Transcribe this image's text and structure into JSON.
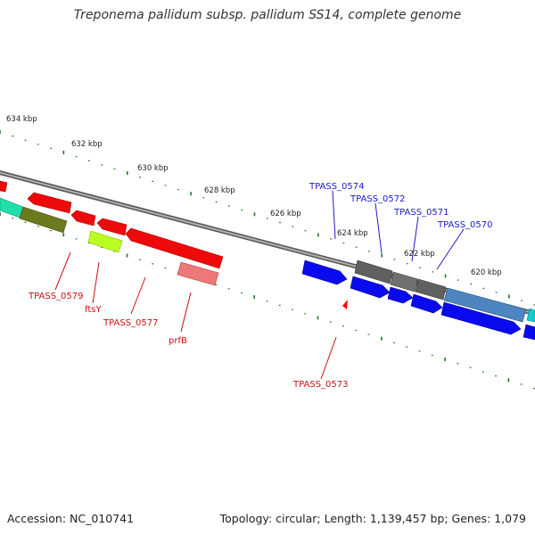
{
  "title": "Treponema pallidum subsp. pallidum SS14, complete genome",
  "footer": {
    "accession": "Accession: NC_010741",
    "topology": "Topology: circular; Length: 1,139,457 bp; Genes: 1,079"
  },
  "colors": {
    "forward_strand": "#0a0aee",
    "reverse_strand": "#ee0a0a",
    "backbone": "#7a7a7a",
    "ticks": "#1a7a1a",
    "label_red": "#cc1111",
    "label_blue": "#1a1acc"
  },
  "scale_labels": [
    "634 kbp",
    "632 kbp",
    "630 kbp",
    "628 kbp",
    "626 kbp",
    "624 kbp",
    "622 kbp",
    "620 kbp"
  ],
  "gene_labels": {
    "reverse": [
      "TPASS_0579",
      "ftsY",
      "TPASS_0577",
      "prfB",
      "TPASS_0573"
    ],
    "forward": [
      "TPASS_0574",
      "TPASS_0572",
      "TPASS_0571",
      "TPASS_0570"
    ]
  }
}
